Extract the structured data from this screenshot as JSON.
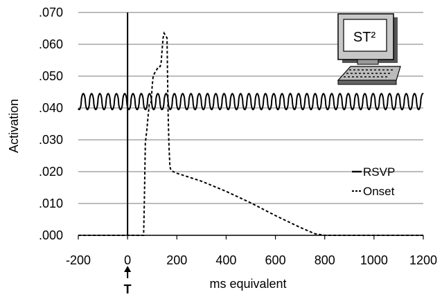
{
  "chart_data": {
    "type": "line",
    "title": "",
    "xlabel": "ms equivalent",
    "ylabel": "Activation",
    "xlim": [
      -200,
      1200
    ],
    "ylim": [
      0.0,
      0.07
    ],
    "x_ticks": [
      -200,
      0,
      200,
      400,
      600,
      800,
      1000,
      1200
    ],
    "x_tick_labels": [
      "-200",
      "0",
      "200",
      "400",
      "600",
      "800",
      "1000",
      "1200"
    ],
    "y_ticks": [
      0.0,
      0.01,
      0.02,
      0.03,
      0.04,
      0.05,
      0.06,
      0.07
    ],
    "y_tick_labels": [
      ".000",
      ".010",
      ".020",
      ".030",
      ".040",
      ".050",
      ".060",
      ".070"
    ],
    "grid": "horizontal",
    "legend_position": "right",
    "target_marker": {
      "x": 0,
      "label": "T"
    },
    "logo_text": "ST²",
    "series": [
      {
        "name": "RSVP",
        "style": "solid",
        "color": "#000000",
        "oscillation": {
          "period_ms": 33.6,
          "min": 0.0395,
          "max": 0.0445,
          "start_phase_ms": 12
        },
        "x": [
          -200,
          -180,
          -160,
          -140,
          -120,
          -100,
          -80,
          -60,
          -40,
          -20,
          0,
          20,
          40,
          60,
          80,
          100,
          120,
          140,
          160,
          180,
          200
        ],
        "y": [
          0.0445,
          0.0398,
          0.0445,
          0.0398,
          0.0445,
          0.0398,
          0.0445,
          0.0398,
          0.0445,
          0.0398,
          0.0445,
          0.0398,
          0.0445,
          0.0398,
          0.0445,
          0.0398,
          0.0445,
          0.0398,
          0.0445,
          0.0398,
          0.0445
        ]
      },
      {
        "name": "Onset",
        "style": "dashed",
        "color": "#000000",
        "x": [
          -200,
          60,
          65,
          68,
          72,
          78,
          84,
          88,
          92,
          96,
          100,
          104,
          110,
          118,
          126,
          132,
          136,
          140,
          144,
          148,
          152,
          156,
          160,
          164,
          168,
          172,
          176,
          180,
          200,
          300,
          400,
          500,
          600,
          700,
          760,
          800,
          1200
        ],
        "y": [
          0.0,
          0.0,
          0.0,
          0.01,
          0.029,
          0.033,
          0.038,
          0.041,
          0.041,
          0.042,
          0.047,
          0.05,
          0.051,
          0.052,
          0.053,
          0.053,
          0.054,
          0.058,
          0.062,
          0.0635,
          0.063,
          0.0625,
          0.062,
          0.04,
          0.028,
          0.0215,
          0.0205,
          0.0202,
          0.0195,
          0.017,
          0.0138,
          0.0102,
          0.0062,
          0.0025,
          0.0005,
          0.0,
          0.0
        ]
      }
    ]
  }
}
